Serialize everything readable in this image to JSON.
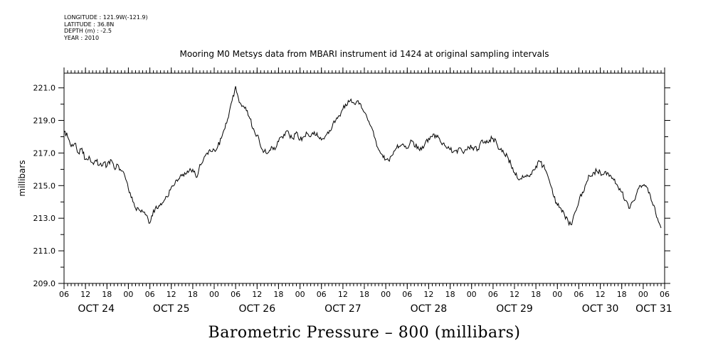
{
  "meta": {
    "longitude": "LONGITUDE : 121.9W(-121.9)",
    "latitude": "LATITUDE : 36.8N",
    "depth": "DEPTH (m) : -2.5",
    "year": "YEAR : 2010"
  },
  "chart_data": {
    "type": "line",
    "title": "Mooring M0 Metsys data from MBARI instrument id 1424 at original sampling intervals",
    "xlabel": "",
    "ylabel": "millibars",
    "caption": "Barometric Pressure – 800 (millibars)",
    "ylim": [
      209.0,
      221.9
    ],
    "yticks": [
      "209.0",
      "211.0",
      "213.0",
      "215.0",
      "217.0",
      "219.0",
      "221.0"
    ],
    "xlim_hours": [
      0,
      168
    ],
    "hour_ticks": [
      "06",
      "12",
      "18",
      "00",
      "06",
      "12",
      "18",
      "00",
      "06",
      "12",
      "18",
      "00",
      "06",
      "12",
      "18",
      "00",
      "06",
      "12",
      "18",
      "00",
      "06",
      "12",
      "18",
      "00",
      "06",
      "12",
      "18",
      "00",
      "06"
    ],
    "day_labels": [
      "OCT 24",
      "OCT 25",
      "OCT 26",
      "OCT 27",
      "OCT 28",
      "OCT 29",
      "OCT 30",
      "OCT 31"
    ],
    "grid": false,
    "series": [
      {
        "x_unit": "hours since OCT 24 06:00",
        "points": [
          [
            0,
            218.3
          ],
          [
            1,
            218.0
          ],
          [
            2,
            217.4
          ],
          [
            3,
            217.6
          ],
          [
            4,
            217.0
          ],
          [
            5,
            217.3
          ],
          [
            6,
            216.6
          ],
          [
            7,
            216.8
          ],
          [
            8,
            216.4
          ],
          [
            9,
            216.5
          ],
          [
            10,
            216.3
          ],
          [
            11,
            216.4
          ],
          [
            12,
            216.2
          ],
          [
            13,
            216.6
          ],
          [
            14,
            216.1
          ],
          [
            15,
            216.3
          ],
          [
            16,
            215.9
          ],
          [
            17,
            215.6
          ],
          [
            18,
            214.8
          ],
          [
            19,
            214.3
          ],
          [
            20,
            213.6
          ],
          [
            21,
            213.5
          ],
          [
            22,
            213.4
          ],
          [
            23,
            213.2
          ],
          [
            24,
            212.7
          ],
          [
            25,
            213.5
          ],
          [
            26,
            213.6
          ],
          [
            27,
            213.9
          ],
          [
            28,
            214.1
          ],
          [
            29,
            214.3
          ],
          [
            30,
            214.9
          ],
          [
            31,
            215.1
          ],
          [
            32,
            215.4
          ],
          [
            33,
            215.6
          ],
          [
            34,
            215.7
          ],
          [
            35,
            215.9
          ],
          [
            36,
            216.0
          ],
          [
            37,
            215.5
          ],
          [
            38,
            216.3
          ],
          [
            39,
            216.6
          ],
          [
            40,
            217.0
          ],
          [
            41,
            217.1
          ],
          [
            42,
            217.2
          ],
          [
            43,
            217.4
          ],
          [
            44,
            217.9
          ],
          [
            45,
            218.5
          ],
          [
            46,
            219.2
          ],
          [
            47,
            220.2
          ],
          [
            48,
            221.1
          ],
          [
            49,
            220.1
          ],
          [
            50,
            219.9
          ],
          [
            51,
            219.6
          ],
          [
            52,
            219.1
          ],
          [
            53,
            218.5
          ],
          [
            54,
            218.1
          ],
          [
            55,
            217.4
          ],
          [
            56,
            217.1
          ],
          [
            57,
            217.0
          ],
          [
            58,
            217.4
          ],
          [
            59,
            217.2
          ],
          [
            60,
            217.7
          ],
          [
            61,
            218.0
          ],
          [
            62,
            218.3
          ],
          [
            63,
            218.1
          ],
          [
            64,
            217.9
          ],
          [
            65,
            218.3
          ],
          [
            66,
            217.8
          ],
          [
            67,
            218.0
          ],
          [
            68,
            218.2
          ],
          [
            69,
            218.0
          ],
          [
            70,
            218.3
          ],
          [
            71,
            218.0
          ],
          [
            72,
            217.8
          ],
          [
            73,
            218.0
          ],
          [
            74,
            218.2
          ],
          [
            75,
            218.6
          ],
          [
            76,
            219.0
          ],
          [
            77,
            219.3
          ],
          [
            78,
            219.7
          ],
          [
            79,
            219.9
          ],
          [
            80,
            220.2
          ],
          [
            81,
            220.1
          ],
          [
            82,
            220.2
          ],
          [
            83,
            220.0
          ],
          [
            84,
            219.5
          ],
          [
            85,
            219.0
          ],
          [
            86,
            218.6
          ],
          [
            87,
            217.9
          ],
          [
            88,
            217.2
          ],
          [
            89,
            216.9
          ],
          [
            90,
            216.6
          ],
          [
            91,
            216.5
          ],
          [
            92,
            216.9
          ],
          [
            93,
            217.3
          ],
          [
            94,
            217.4
          ],
          [
            95,
            217.5
          ],
          [
            96,
            217.3
          ],
          [
            97,
            217.8
          ],
          [
            98,
            217.4
          ],
          [
            99,
            217.4
          ],
          [
            100,
            217.2
          ],
          [
            101,
            217.6
          ],
          [
            102,
            217.9
          ],
          [
            103,
            218.0
          ],
          [
            104,
            218.1
          ],
          [
            105,
            217.9
          ],
          [
            106,
            217.6
          ],
          [
            107,
            217.3
          ],
          [
            108,
            217.2
          ],
          [
            109,
            217.1
          ],
          [
            110,
            217.0
          ],
          [
            111,
            217.3
          ],
          [
            112,
            217.1
          ],
          [
            113,
            217.4
          ],
          [
            114,
            217.3
          ],
          [
            115,
            217.4
          ],
          [
            116,
            217.2
          ],
          [
            117,
            217.8
          ],
          [
            118,
            217.6
          ],
          [
            119,
            217.8
          ],
          [
            120,
            217.9
          ],
          [
            121,
            217.6
          ],
          [
            122,
            217.2
          ],
          [
            123,
            217.0
          ],
          [
            124,
            216.8
          ],
          [
            125,
            216.3
          ],
          [
            126,
            215.8
          ],
          [
            127,
            215.4
          ],
          [
            128,
            215.4
          ],
          [
            129,
            215.6
          ],
          [
            130,
            215.6
          ],
          [
            131,
            215.9
          ],
          [
            132,
            216.2
          ],
          [
            133,
            216.5
          ],
          [
            134,
            216.2
          ],
          [
            135,
            215.8
          ],
          [
            136,
            215.1
          ],
          [
            137,
            214.3
          ],
          [
            138,
            213.8
          ],
          [
            139,
            213.6
          ],
          [
            140,
            213.2
          ],
          [
            141,
            212.8
          ],
          [
            142,
            212.6
          ],
          [
            143,
            213.4
          ],
          [
            144,
            214.0
          ],
          [
            145,
            214.6
          ],
          [
            146,
            215.1
          ],
          [
            147,
            215.6
          ],
          [
            148,
            215.8
          ],
          [
            149,
            215.9
          ],
          [
            150,
            215.8
          ],
          [
            151,
            215.7
          ],
          [
            152,
            215.8
          ],
          [
            153,
            215.6
          ],
          [
            154,
            215.4
          ],
          [
            155,
            214.9
          ],
          [
            156,
            214.6
          ],
          [
            157,
            214.1
          ],
          [
            158,
            213.6
          ],
          [
            159,
            214.0
          ],
          [
            160,
            214.4
          ],
          [
            161,
            215.0
          ],
          [
            162,
            215.0
          ],
          [
            163,
            214.9
          ],
          [
            164,
            214.4
          ],
          [
            165,
            213.8
          ],
          [
            166,
            213.0
          ],
          [
            167,
            212.4
          ]
        ]
      }
    ]
  }
}
